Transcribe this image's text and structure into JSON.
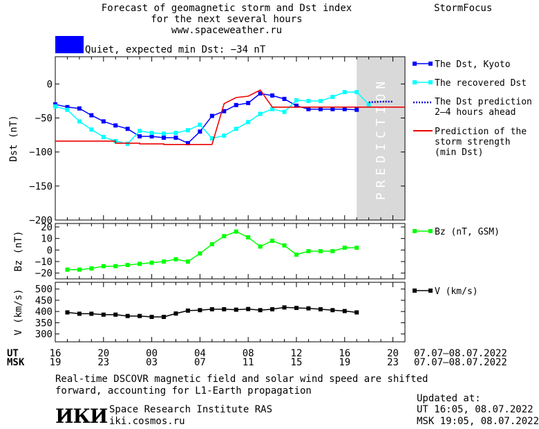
{
  "header": {
    "title_line1": "Forecast of geomagnetic storm and Dst index",
    "title_line2": "for the next several hours",
    "title_line3": "www.spaceweather.ru",
    "brand": "StormFocus"
  },
  "status": {
    "color": "#0000ff",
    "text": "Quiet, expected min Dst: −34 nT"
  },
  "colors": {
    "dst_kyoto": "#0000ff",
    "recovered": "#00ffff",
    "prediction_dots": "#0000cc",
    "storm_strength": "#ee0000",
    "bz": "#00ff00",
    "v": "#000000",
    "prediction_band": "#d9d9d9"
  },
  "chart_data": [
    {
      "type": "line",
      "ylabel": "Dst (nT)",
      "ylim": [
        -200,
        40
      ],
      "yticks": [
        "0",
        "−50",
        "−100",
        "−150",
        "−200"
      ],
      "band_label": "PREDICTION",
      "x_hours": [
        0,
        1,
        2,
        3,
        4,
        5,
        6,
        7,
        8,
        9,
        10,
        11,
        12,
        13,
        14,
        15,
        16,
        17,
        18,
        19,
        20,
        21,
        22,
        23,
        24,
        25,
        26
      ],
      "series": [
        {
          "name": "The Dst, Kyoto",
          "marker": "square",
          "x": [
            0,
            1,
            2,
            3,
            4,
            5,
            6,
            7,
            8,
            9,
            10,
            11,
            12,
            13,
            14,
            15,
            16,
            17,
            18,
            19,
            20,
            21,
            22,
            23,
            24,
            25
          ],
          "y": [
            -30,
            -34,
            -36,
            -46,
            -55,
            -61,
            -66,
            -77,
            -77,
            -79,
            -79,
            -87,
            -70,
            -47,
            -40,
            -31,
            -28,
            -14,
            -17,
            -22,
            -32,
            -37,
            -37,
            -37,
            -37,
            -38
          ]
        },
        {
          "name": "The recovered Dst",
          "marker": "square",
          "x": [
            0,
            1,
            2,
            3,
            4,
            5,
            6,
            7,
            8,
            9,
            10,
            11,
            12,
            13,
            14,
            15,
            16,
            17,
            18,
            19,
            20,
            21,
            22,
            23,
            24,
            25,
            26
          ],
          "y": [
            -33,
            -38,
            -55,
            -67,
            -78,
            -84,
            -88,
            -69,
            -72,
            -73,
            -72,
            -68,
            -60,
            -80,
            -76,
            -66,
            -56,
            -44,
            -37,
            -41,
            -24,
            -25,
            -25,
            -19,
            -12,
            -12,
            -30
          ]
        },
        {
          "name": "The Dst prediction\n2–4 hours ahead",
          "style": "dotted",
          "x": [
            26,
            27,
            28
          ],
          "y": [
            -27,
            -26,
            -26
          ]
        },
        {
          "name": "Prediction of the\nstorm strength\n(min Dst)",
          "style": "red",
          "x": [
            0,
            5,
            5,
            7,
            7,
            9,
            9,
            12,
            13,
            14,
            15,
            16,
            17,
            18,
            18,
            29
          ],
          "y": [
            -84,
            -84,
            -87,
            -87,
            -88,
            -88,
            -89,
            -89,
            -89,
            -29,
            -20,
            -18,
            -9,
            -34,
            -34,
            -34
          ]
        }
      ]
    },
    {
      "type": "line",
      "ylabel": "Bz (nT)",
      "ylim": [
        -25,
        23
      ],
      "yticks": [
        "20",
        "10",
        "0",
        "−10",
        "−20"
      ],
      "series": [
        {
          "name": "Bz (nT, GSM)",
          "marker": "square",
          "x": [
            1,
            2,
            3,
            4,
            5,
            6,
            7,
            8,
            9,
            10,
            11,
            12,
            13,
            14,
            15,
            16,
            17,
            18,
            19,
            20,
            21,
            22,
            23,
            24,
            25
          ],
          "y": [
            -17,
            -17,
            -16,
            -14,
            -14,
            -13,
            -12,
            -11,
            -10,
            -8,
            -10,
            -3,
            5,
            12,
            16,
            11,
            3,
            8,
            4,
            -4,
            -1,
            -1,
            -1,
            2,
            2
          ]
        }
      ]
    },
    {
      "type": "line",
      "ylabel": "V (km/s)",
      "ylim": [
        265,
        530
      ],
      "yticks": [
        "500",
        "450",
        "400",
        "350",
        "300"
      ],
      "series": [
        {
          "name": "V (km/s)",
          "marker": "square",
          "x": [
            1,
            2,
            3,
            4,
            5,
            6,
            7,
            8,
            9,
            10,
            11,
            12,
            13,
            14,
            15,
            16,
            17,
            18,
            19,
            20,
            21,
            22,
            23,
            24,
            25
          ],
          "y": [
            396,
            390,
            390,
            386,
            386,
            380,
            380,
            376,
            376,
            391,
            404,
            406,
            410,
            410,
            408,
            411,
            406,
            410,
            418,
            416,
            414,
            410,
            406,
            402,
            396
          ]
        }
      ]
    }
  ],
  "time_axis": {
    "ut_label": "UT",
    "msk_label": "MSK",
    "ut_ticks": [
      "16",
      "20",
      "00",
      "04",
      "08",
      "12",
      "16",
      "20"
    ],
    "msk_ticks": [
      "19",
      "23",
      "03",
      "07",
      "11",
      "15",
      "19",
      "23"
    ],
    "ut_range": "07.07–08.07.2022",
    "msk_range": "07.07–08.07.2022"
  },
  "footer": {
    "note_line1": "Real-time DSCOVR magnetic field and solar wind speed are shifted",
    "note_line2": "forward, accounting for L1-Earth propagation",
    "logo": "ИКИ",
    "org": "Space Research Institute RAS",
    "site": "iki.cosmos.ru",
    "updated_label": "Updated at:",
    "updated_ut": "UT   16:05, 08.07.2022",
    "updated_msk": "MSK 19:05, 08.07.2022"
  }
}
